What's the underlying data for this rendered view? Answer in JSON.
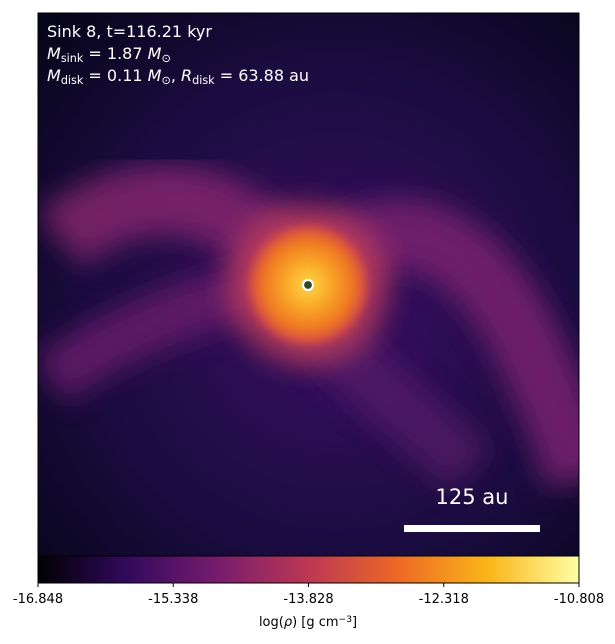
{
  "chart_data": {
    "type": "density-map",
    "annotations": [
      [
        {
          "t": "Sink 8, t=116.21 kyr"
        }
      ],
      [
        {
          "it": "M"
        },
        {
          "sub": "sink"
        },
        {
          "t": " = 1.87 "
        },
        {
          "it": "M"
        },
        {
          "sub": "⊙"
        }
      ],
      [
        {
          "it": "M"
        },
        {
          "sub": "disk"
        },
        {
          "t": " = 0.11 "
        },
        {
          "it": "M"
        },
        {
          "sub": "⊙"
        },
        {
          "t": ", "
        },
        {
          "it": "R"
        },
        {
          "sub": "disk"
        },
        {
          "t": " = 63.88 au"
        }
      ]
    ],
    "scale_bar_label": "125 au",
    "colorbar": {
      "label": [
        {
          "t": "log("
        },
        {
          "it": "ρ"
        },
        {
          "t": ") [g cm"
        },
        {
          "sup": "−3"
        },
        {
          "t": "]"
        }
      ],
      "lim": [
        -16.848,
        -10.808
      ],
      "ticks": [
        -16.848,
        -15.338,
        -13.828,
        -12.318,
        -10.808
      ],
      "colormap": [
        "#000004",
        "#320a5e",
        "#781c6d",
        "#bc3754",
        "#ed6925",
        "#fbb61a",
        "#fcffa4"
      ]
    }
  }
}
